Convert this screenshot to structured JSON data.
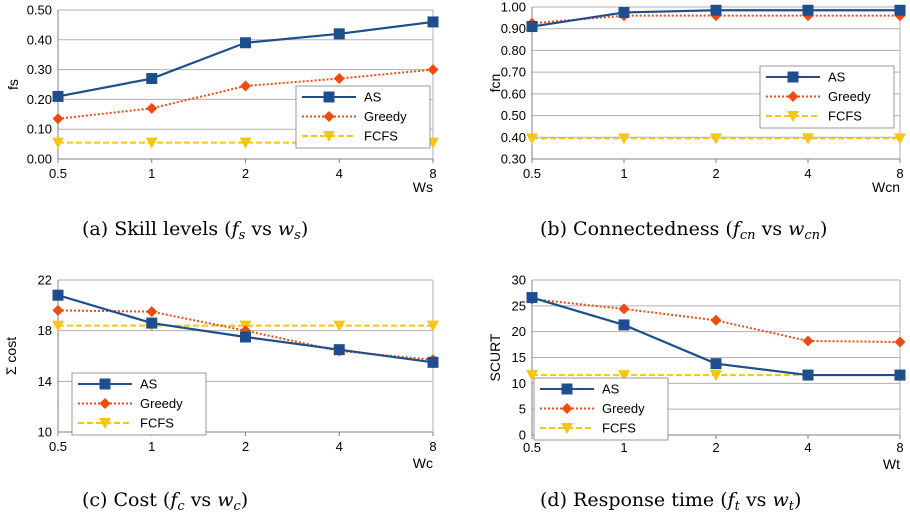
{
  "colors": {
    "AS": "#1f4e8c",
    "Greedy": "#f04a12",
    "FCFS": "#f5c518",
    "grid": "#b0b0b0",
    "axis": "#808080"
  },
  "chart_data": [
    {
      "type": "line",
      "caption": "(a) Skill levels (f_s vs w_s)",
      "caption_parts": [
        "(a) Skill levels (",
        "f",
        "s",
        " vs ",
        "w",
        "s",
        ")"
      ],
      "xlabel": "Ws",
      "ylabel": "fs",
      "categories": [
        "0.5",
        "1",
        "2",
        "4",
        "8"
      ],
      "yticks": [
        "0.00",
        "0.10",
        "0.20",
        "0.30",
        "0.40",
        "0.50"
      ],
      "ylim": [
        0,
        0.5
      ],
      "grid": true,
      "legend": "right",
      "series": [
        {
          "name": "AS",
          "marker": "square",
          "dash": false,
          "values": [
            0.21,
            0.27,
            0.39,
            0.42,
            0.46
          ]
        },
        {
          "name": "Greedy",
          "marker": "diamond",
          "dash": "dot",
          "values": [
            0.135,
            0.17,
            0.245,
            0.27,
            0.3
          ]
        },
        {
          "name": "FCFS",
          "marker": "triangle",
          "dash": "dash",
          "values": [
            0.055,
            0.055,
            0.055,
            0.055,
            0.055
          ]
        }
      ]
    },
    {
      "type": "line",
      "caption": "(b) Connectedness (f_cn vs w_cn)",
      "caption_parts": [
        "(b) Connectedness (",
        "f",
        "cn",
        " vs ",
        "w",
        "cn",
        ")"
      ],
      "xlabel": "Wcn",
      "ylabel": "fcn",
      "categories": [
        "0.5",
        "1",
        "2",
        "4",
        "8"
      ],
      "yticks": [
        "0.30",
        "0.40",
        "0.50",
        "0.60",
        "0.70",
        "0.80",
        "0.90",
        "1.00"
      ],
      "ylim": [
        0.3,
        1.0
      ],
      "grid": true,
      "legend": "right",
      "series": [
        {
          "name": "AS",
          "marker": "square",
          "dash": false,
          "values": [
            0.91,
            0.975,
            0.985,
            0.985,
            0.985
          ]
        },
        {
          "name": "Greedy",
          "marker": "diamond",
          "dash": "dot",
          "values": [
            0.925,
            0.96,
            0.96,
            0.96,
            0.96
          ]
        },
        {
          "name": "FCFS",
          "marker": "triangle",
          "dash": "dash",
          "values": [
            0.395,
            0.395,
            0.395,
            0.395,
            0.395
          ]
        }
      ]
    },
    {
      "type": "line",
      "caption": "(c) Cost (f_c vs w_c)",
      "caption_parts": [
        "(c) Cost (",
        "f",
        "c",
        " vs ",
        "w",
        "c",
        ")"
      ],
      "xlabel": "Wc",
      "ylabel": "Σ cost",
      "categories": [
        "0.5",
        "1",
        "2",
        "4",
        "8"
      ],
      "yticks": [
        "10",
        "14",
        "18",
        "22"
      ],
      "ylim": [
        10,
        22
      ],
      "grid": true,
      "legend": "lower-left",
      "series": [
        {
          "name": "AS",
          "marker": "square",
          "dash": false,
          "values": [
            20.8,
            18.6,
            17.5,
            16.5,
            15.5
          ]
        },
        {
          "name": "Greedy",
          "marker": "diamond",
          "dash": "dot",
          "values": [
            19.6,
            19.5,
            18.0,
            16.4,
            15.7
          ]
        },
        {
          "name": "FCFS",
          "marker": "triangle",
          "dash": "dash",
          "values": [
            18.4,
            18.4,
            18.4,
            18.4,
            18.4
          ]
        }
      ]
    },
    {
      "type": "line",
      "caption": "(d) Response time (f_t vs w_t)",
      "caption_parts": [
        "(d) Response time (",
        "f",
        "t",
        " vs ",
        "w",
        "t",
        ")"
      ],
      "xlabel": "Wt",
      "ylabel": "SCURT",
      "categories": [
        "0.5",
        "1",
        "2",
        "4",
        "8"
      ],
      "yticks": [
        "0",
        "5",
        "10",
        "15",
        "20",
        "25",
        "30"
      ],
      "ylim": [
        0,
        30
      ],
      "grid": true,
      "legend": "lower-left",
      "series": [
        {
          "name": "AS",
          "marker": "square",
          "dash": false,
          "values": [
            26.6,
            21.3,
            13.8,
            11.6,
            11.6
          ]
        },
        {
          "name": "Greedy",
          "marker": "diamond",
          "dash": "dot",
          "values": [
            26.3,
            24.4,
            22.2,
            18.2,
            18.0
          ]
        },
        {
          "name": "FCFS",
          "marker": "triangle",
          "dash": "dash",
          "values": [
            11.6,
            11.6,
            11.6,
            11.6,
            11.6
          ]
        }
      ]
    }
  ]
}
